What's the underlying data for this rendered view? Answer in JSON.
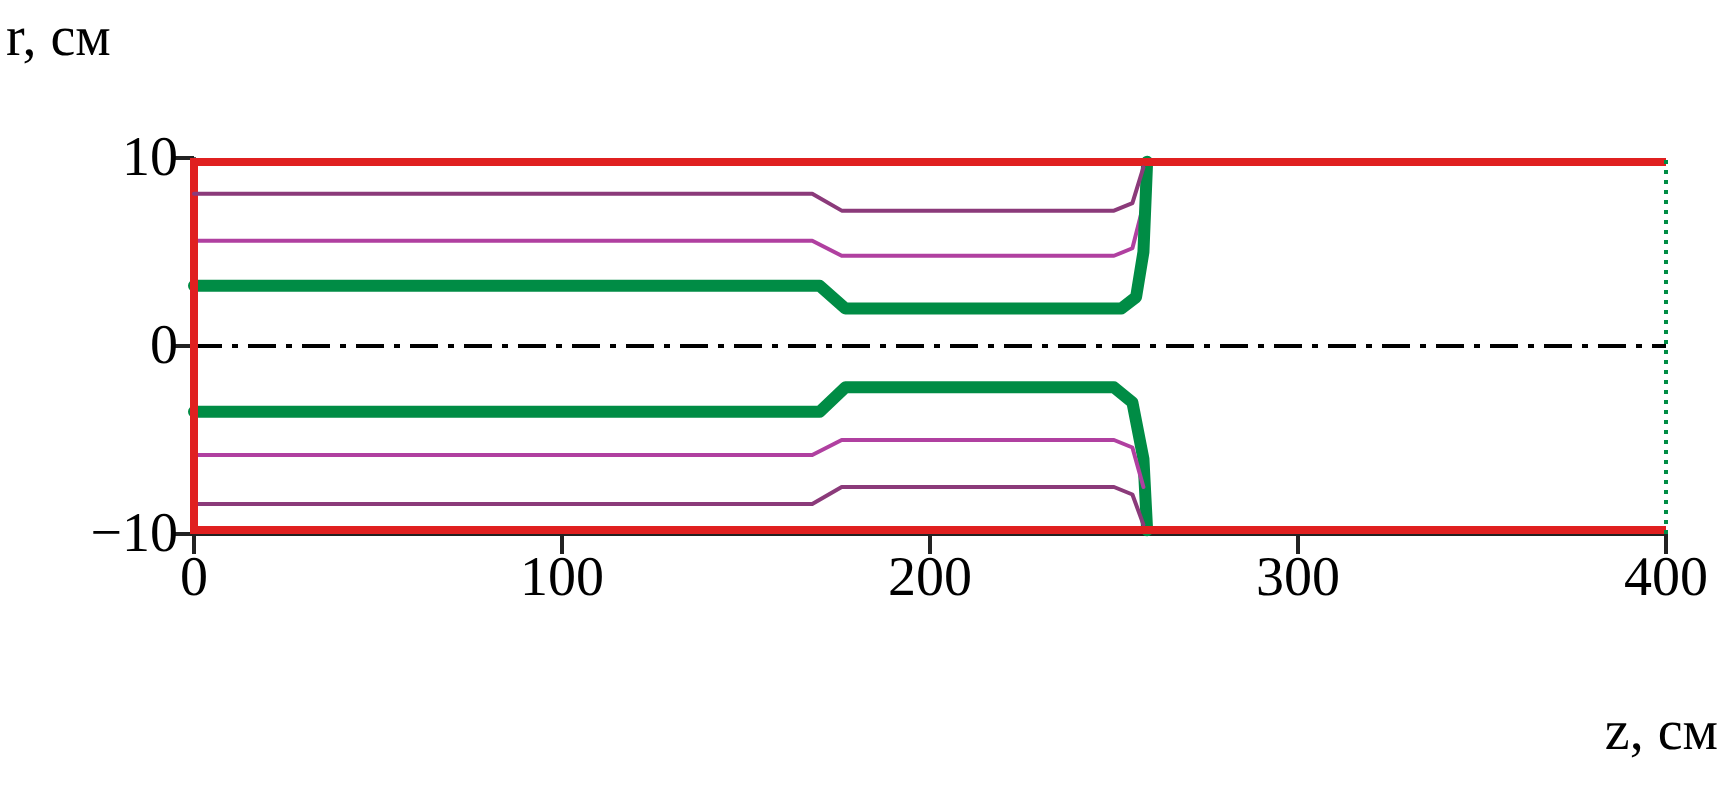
{
  "chart_data": {
    "type": "line",
    "xlabel": "z, см",
    "ylabel": "r, см",
    "xlim": [
      0,
      400
    ],
    "xticks": [
      0,
      100,
      200,
      300,
      400
    ],
    "ylim": [
      -10,
      10
    ],
    "yticks": [
      10,
      0,
      {
        "value": -10,
        "label": "−10"
      }
    ],
    "grid": false,
    "marker": "none",
    "series": [
      {
        "color": "#8b3a7a",
        "x": [
          0,
          168,
          176,
          250,
          255,
          258
        ],
        "values": [
          8.1,
          8.1,
          7.2,
          7.2,
          7.6,
          9.5
        ]
      },
      {
        "color": "#b040a0",
        "x": [
          0,
          168,
          176,
          250,
          255,
          258
        ],
        "values": [
          5.6,
          5.6,
          4.8,
          4.8,
          5.2,
          7.5
        ]
      },
      {
        "color": "#008c45",
        "x": [
          0,
          170,
          177,
          252,
          256,
          258,
          259
        ],
        "values": [
          3.2,
          3.2,
          2.0,
          2.0,
          2.6,
          5,
          9.8
        ]
      },
      {
        "color": "#008c45",
        "x": [
          0,
          170,
          177,
          250,
          255,
          258,
          259
        ],
        "values": [
          -3.5,
          -3.5,
          -2.2,
          -2.2,
          -3,
          -6,
          -9.8
        ]
      },
      {
        "color": "#b040a0",
        "x": [
          0,
          168,
          176,
          250,
          255,
          258
        ],
        "values": [
          -5.8,
          -5.8,
          -5.0,
          -5.0,
          -5.4,
          -7.5
        ]
      },
      {
        "color": "#8b3a7a",
        "x": [
          0,
          168,
          176,
          250,
          255,
          258
        ],
        "values": [
          -8.4,
          -8.4,
          -7.5,
          -7.5,
          -7.9,
          -9.5
        ]
      }
    ],
    "ref_lines": [
      {
        "axis": "y",
        "value": 0,
        "line_style": "dashed",
        "color": "#000000"
      },
      {
        "axis": "y",
        "value": 9.8,
        "color": "#e02020"
      },
      {
        "axis": "y",
        "value": -9.8,
        "color": "#e02020"
      },
      {
        "axis": "x",
        "value": 0,
        "color": "#e02020"
      },
      {
        "axis": "x",
        "value": 400,
        "line_style": "dotted",
        "color": "#008c45"
      }
    ]
  }
}
